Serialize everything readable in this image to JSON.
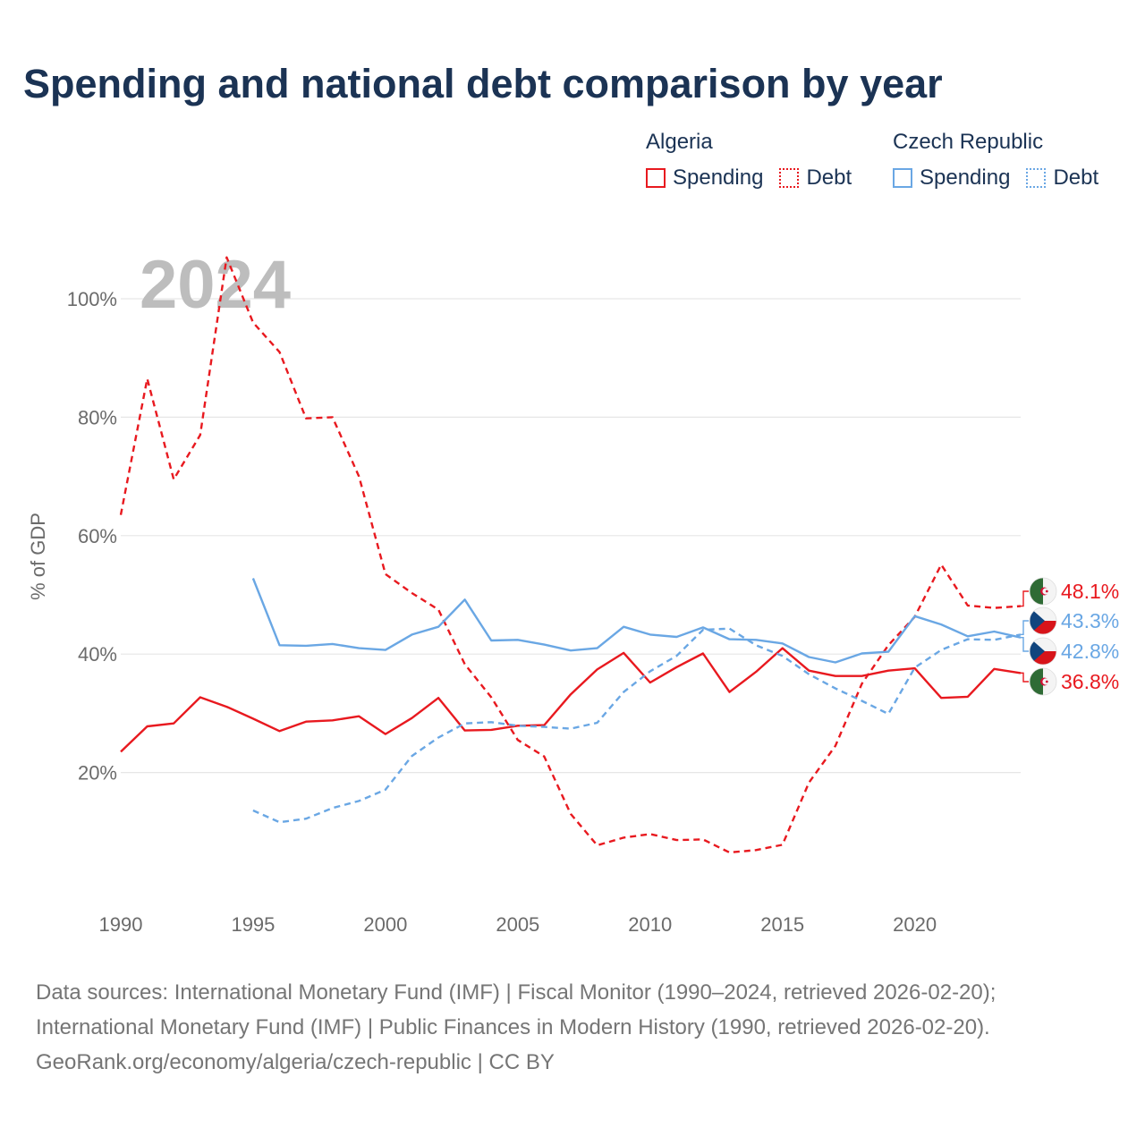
{
  "title": "Spending and national debt comparison by year",
  "legend": {
    "groups": [
      {
        "name": "Algeria",
        "color": "#e8191f",
        "spending_label": "Spending",
        "debt_label": "Debt"
      },
      {
        "name": "Czech Republic",
        "color": "#6aa7e4",
        "spending_label": "Spending",
        "debt_label": "Debt"
      }
    ]
  },
  "source": {
    "line1": "Data sources: International Monetary Fund (IMF) | Fiscal Monitor (1990–2024, retrieved 2026-02-20);",
    "line2": "International Monetary Fund (IMF) | Public Finances in Modern History (1990, retrieved 2026-02-20).",
    "line3": "GeoRank.org/economy/algeria/czech-republic | CC BY"
  },
  "chart_data": {
    "type": "line",
    "title": "Spending and national debt comparison by year",
    "year_label": "2024",
    "ylabel": "% of GDP",
    "xlim": [
      1990,
      2024
    ],
    "ylim": [
      0,
      105
    ],
    "xticks": [
      1990,
      1995,
      2000,
      2005,
      2010,
      2015,
      2020
    ],
    "yticks": [
      20,
      40,
      60,
      80,
      100
    ],
    "ytick_labels": [
      "20%",
      "40%",
      "60%",
      "80%",
      "100%"
    ],
    "grid": true,
    "series": [
      {
        "name": "Algeria Spending",
        "country": "Algeria",
        "metric": "Spending",
        "color": "#e8191f",
        "dash": "solid",
        "x": [
          1990,
          1991,
          1992,
          1993,
          1994,
          1995,
          1996,
          1997,
          1998,
          1999,
          2000,
          2001,
          2002,
          2003,
          2004,
          2005,
          2006,
          2007,
          2008,
          2009,
          2010,
          2011,
          2012,
          2013,
          2014,
          2015,
          2016,
          2017,
          2018,
          2019,
          2020,
          2021,
          2022,
          2023,
          2024
        ],
        "values": [
          23.5,
          27.8,
          28.3,
          32.7,
          31.1,
          29.1,
          27.0,
          28.6,
          28.8,
          29.5,
          26.5,
          29.2,
          32.6,
          27.1,
          27.2,
          27.9,
          28.0,
          33.2,
          37.4,
          40.2,
          35.2,
          37.8,
          40.1,
          33.6,
          37.0,
          41.0,
          37.2,
          36.3,
          36.3,
          37.2,
          37.6,
          32.6,
          32.8,
          37.5,
          36.8
        ],
        "end_label": "36.8%",
        "flag": "algeria"
      },
      {
        "name": "Algeria Debt",
        "country": "Algeria",
        "metric": "Debt",
        "color": "#e8191f",
        "dash": "dashed",
        "x": [
          1990,
          1991,
          1992,
          1993,
          1994,
          1995,
          1996,
          1997,
          1998,
          1999,
          2000,
          2001,
          2002,
          2003,
          2004,
          2005,
          2006,
          2007,
          2008,
          2009,
          2010,
          2011,
          2012,
          2013,
          2014,
          2015,
          2016,
          2017,
          2018,
          2019,
          2020,
          2021,
          2022,
          2023,
          2024
        ],
        "values": [
          63.5,
          86.5,
          69.5,
          77.0,
          107.0,
          96.0,
          91.0,
          79.8,
          80.0,
          70.0,
          53.5,
          50.3,
          47.5,
          38.3,
          32.7,
          25.5,
          22.7,
          13.0,
          7.7,
          9.0,
          9.6,
          8.6,
          8.7,
          6.5,
          6.9,
          7.8,
          18.3,
          24.5,
          35.0,
          41.5,
          46.3,
          55.1,
          48.2,
          47.8,
          48.1
        ],
        "end_label": "48.1%",
        "flag": "algeria"
      },
      {
        "name": "Czech Republic Spending",
        "country": "Czech Republic",
        "metric": "Spending",
        "color": "#6aa7e4",
        "dash": "solid",
        "x": [
          1995,
          1996,
          1997,
          1998,
          1999,
          2000,
          2001,
          2002,
          2003,
          2004,
          2005,
          2006,
          2007,
          2008,
          2009,
          2010,
          2011,
          2012,
          2013,
          2014,
          2015,
          2016,
          2017,
          2018,
          2019,
          2020,
          2021,
          2022,
          2023,
          2024
        ],
        "values": [
          52.8,
          41.5,
          41.4,
          41.7,
          41.0,
          40.7,
          43.3,
          44.6,
          49.2,
          42.3,
          42.4,
          41.6,
          40.6,
          41.0,
          44.6,
          43.3,
          42.9,
          44.5,
          42.5,
          42.4,
          41.8,
          39.5,
          38.6,
          40.1,
          40.4,
          46.4,
          45.0,
          43.0,
          43.8,
          42.8
        ],
        "end_label": "42.8%",
        "flag": "czech"
      },
      {
        "name": "Czech Republic Debt",
        "country": "Czech Republic",
        "metric": "Debt",
        "color": "#6aa7e4",
        "dash": "dashed",
        "x": [
          1995,
          1996,
          1997,
          1998,
          1999,
          2000,
          2001,
          2002,
          2003,
          2004,
          2005,
          2006,
          2007,
          2008,
          2009,
          2010,
          2011,
          2012,
          2013,
          2014,
          2015,
          2016,
          2017,
          2018,
          2019,
          2020,
          2021,
          2022,
          2023,
          2024
        ],
        "values": [
          13.6,
          11.6,
          12.2,
          14.0,
          15.2,
          17.1,
          22.8,
          25.9,
          28.3,
          28.5,
          27.9,
          27.7,
          27.4,
          28.4,
          33.6,
          37.1,
          39.7,
          44.1,
          44.3,
          41.5,
          39.7,
          36.6,
          34.2,
          32.1,
          29.9,
          37.7,
          40.7,
          42.5,
          42.4,
          43.3
        ],
        "end_label": "43.3%",
        "flag": "czech"
      }
    ]
  }
}
